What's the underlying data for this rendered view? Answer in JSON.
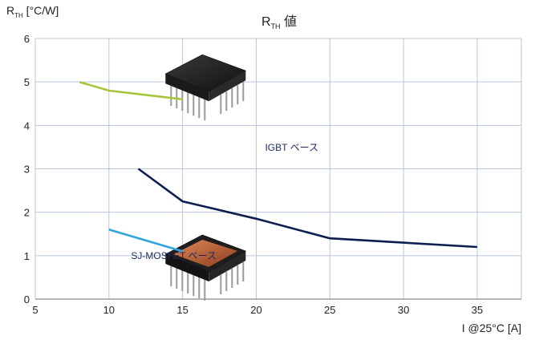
{
  "chart_data": {
    "type": "line",
    "title_main": "R",
    "title_sub": "TH",
    "title_suffix": " 値",
    "ylabel_main": "R",
    "ylabel_sub": "TH",
    "ylabel_suffix": " [°C/W]",
    "xlabel": "I @25°C [A]",
    "xlim": [
      5,
      38
    ],
    "ylim": [
      0,
      6
    ],
    "xticks": [
      5,
      10,
      15,
      20,
      25,
      30,
      35
    ],
    "yticks": [
      0,
      1,
      2,
      3,
      4,
      5,
      6
    ],
    "grid": true,
    "series": [
      {
        "color": "#a6c63a",
        "x": [
          8,
          10,
          15
        ],
        "y": [
          5.0,
          4.8,
          4.6
        ]
      },
      {
        "color": "#0e1e50",
        "x": [
          12,
          15,
          20,
          25,
          35
        ],
        "y": [
          3.0,
          2.25,
          1.85,
          1.4,
          1.2
        ]
      },
      {
        "color": "#2ea6dc",
        "x": [
          10,
          15
        ],
        "y": [
          1.6,
          1.1
        ]
      }
    ],
    "annotations": [
      {
        "text": "IGBT ベース",
        "x": 20.6,
        "y": 3.42
      },
      {
        "text": "SJ-MOSFET ベース",
        "x": 11.5,
        "y": 0.92
      }
    ],
    "images": [
      {
        "icon": "igbt-module-icon",
        "x": 15.8,
        "y": 5.0
      },
      {
        "icon": "sj-mosfet-module-icon",
        "x": 15.8,
        "y": 0.85
      }
    ]
  }
}
